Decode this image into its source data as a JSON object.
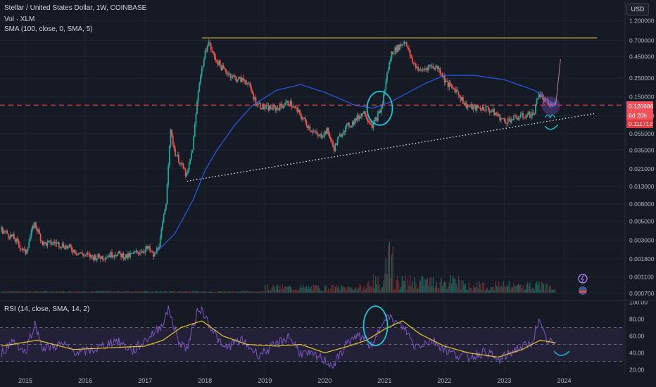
{
  "legend": {
    "main": "Stellar / United States Dollar, 1W, COINBASE",
    "vol": "Vol · XLM",
    "sma": "SMA (100, close, 0, SMA, 5)",
    "rsi": "RSI (14, close, SMA, 14, 2)"
  },
  "header": {
    "currency_button": "USD"
  },
  "price_tags": {
    "last": "0.120686",
    "countdown": "6d 20h",
    "sma": "0.111712"
  },
  "colors": {
    "bg": "#161a25",
    "grid": "#20242f",
    "up": "#26a69a",
    "down": "#ef5350",
    "sma": "#2962ff",
    "resistance": "#c9a227",
    "support": "#e6e6e6",
    "rsi": "#7e57c2",
    "rsi_ma": "#e6c62b",
    "annotation": "#21c4d6",
    "tag_last": "#f0525c",
    "tag_sma": "#e8363d"
  },
  "chart_data": [
    {
      "type": "candlestick",
      "title": "Stellar / United States Dollar, 1W, COINBASE",
      "x_ticks": [
        "2015",
        "2016",
        "2017",
        "2018",
        "2019",
        "2020",
        "2021",
        "2022",
        "2023",
        "2024"
      ],
      "y_scale": "log",
      "y_ticks": [
        "1.200000",
        "0.700000",
        "0.450000",
        "0.250000",
        "0.150000",
        "0.090000",
        "0.055000",
        "0.035000",
        "0.021000",
        "0.013000",
        "0.008000",
        "0.005000",
        "0.003000",
        "0.001800",
        "0.001100",
        "0.000700"
      ],
      "price_path": [
        [
          2014.6,
          0.004
        ],
        [
          2014.8,
          0.0032
        ],
        [
          2015.0,
          0.0021
        ],
        [
          2015.15,
          0.0048
        ],
        [
          2015.3,
          0.0027
        ],
        [
          2015.5,
          0.0028
        ],
        [
          2015.7,
          0.0025
        ],
        [
          2015.9,
          0.0021
        ],
        [
          2016.1,
          0.0019
        ],
        [
          2016.3,
          0.0019
        ],
        [
          2016.5,
          0.0021
        ],
        [
          2016.7,
          0.0019
        ],
        [
          2016.9,
          0.0022
        ],
        [
          2017.05,
          0.0024
        ],
        [
          2017.15,
          0.0019
        ],
        [
          2017.25,
          0.0029
        ],
        [
          2017.35,
          0.0085
        ],
        [
          2017.42,
          0.06
        ],
        [
          2017.5,
          0.033
        ],
        [
          2017.6,
          0.024
        ],
        [
          2017.7,
          0.017
        ],
        [
          2017.8,
          0.04
        ],
        [
          2017.9,
          0.22
        ],
        [
          2018.05,
          0.7
        ],
        [
          2018.15,
          0.45
        ],
        [
          2018.3,
          0.32
        ],
        [
          2018.5,
          0.25
        ],
        [
          2018.7,
          0.23
        ],
        [
          2018.85,
          0.13
        ],
        [
          2019.0,
          0.11
        ],
        [
          2019.2,
          0.11
        ],
        [
          2019.4,
          0.13
        ],
        [
          2019.55,
          0.1
        ],
        [
          2019.75,
          0.064
        ],
        [
          2019.9,
          0.05
        ],
        [
          2020.05,
          0.06
        ],
        [
          2020.15,
          0.036
        ],
        [
          2020.3,
          0.06
        ],
        [
          2020.5,
          0.078
        ],
        [
          2020.65,
          0.1
        ],
        [
          2020.8,
          0.068
        ],
        [
          2020.95,
          0.11
        ],
        [
          2021.05,
          0.3
        ],
        [
          2021.12,
          0.5
        ],
        [
          2021.25,
          0.6
        ],
        [
          2021.35,
          0.7
        ],
        [
          2021.45,
          0.4
        ],
        [
          2021.6,
          0.3
        ],
        [
          2021.75,
          0.35
        ],
        [
          2021.9,
          0.33
        ],
        [
          2022.05,
          0.21
        ],
        [
          2022.2,
          0.18
        ],
        [
          2022.35,
          0.12
        ],
        [
          2022.5,
          0.11
        ],
        [
          2022.7,
          0.11
        ],
        [
          2022.85,
          0.095
        ],
        [
          2023.0,
          0.077
        ],
        [
          2023.2,
          0.085
        ],
        [
          2023.35,
          0.09
        ],
        [
          2023.5,
          0.095
        ],
        [
          2023.57,
          0.17
        ],
        [
          2023.65,
          0.14
        ],
        [
          2023.75,
          0.12
        ],
        [
          2023.85,
          0.121
        ]
      ],
      "sma_100_path": [
        [
          2017.2,
          0.0022
        ],
        [
          2017.5,
          0.0036
        ],
        [
          2017.8,
          0.009
        ],
        [
          2018.0,
          0.02
        ],
        [
          2018.2,
          0.035
        ],
        [
          2018.5,
          0.07
        ],
        [
          2018.8,
          0.12
        ],
        [
          2019.2,
          0.18
        ],
        [
          2019.6,
          0.21
        ],
        [
          2020.0,
          0.17
        ],
        [
          2020.5,
          0.12
        ],
        [
          2020.8,
          0.11
        ],
        [
          2021.1,
          0.13
        ],
        [
          2021.4,
          0.17
        ],
        [
          2021.7,
          0.22
        ],
        [
          2022.0,
          0.27
        ],
        [
          2022.5,
          0.27
        ],
        [
          2023.0,
          0.24
        ],
        [
          2023.5,
          0.18
        ],
        [
          2023.85,
          0.12
        ]
      ],
      "resistance_level": 0.75,
      "horizontal_level": 0.12,
      "support_trendline": [
        [
          2017.7,
          0.015
        ],
        [
          2024.5,
          0.095
        ]
      ]
    },
    {
      "type": "line",
      "title": "RSI (14, close, SMA, 14, 2)",
      "y_ticks": [
        "100.00",
        "80.00",
        "60.00",
        "40.00",
        "20.00"
      ],
      "bands": {
        "upper": 70,
        "middle": 50,
        "lower": 30
      },
      "rsi_path": [
        [
          2014.6,
          40
        ],
        [
          2014.8,
          55
        ],
        [
          2015.0,
          40
        ],
        [
          2015.15,
          75
        ],
        [
          2015.3,
          45
        ],
        [
          2015.6,
          50
        ],
        [
          2015.9,
          40
        ],
        [
          2016.2,
          45
        ],
        [
          2016.5,
          55
        ],
        [
          2016.8,
          42
        ],
        [
          2017.0,
          55
        ],
        [
          2017.25,
          70
        ],
        [
          2017.4,
          92
        ],
        [
          2017.55,
          55
        ],
        [
          2017.7,
          45
        ],
        [
          2017.9,
          95
        ],
        [
          2018.05,
          78
        ],
        [
          2018.3,
          45
        ],
        [
          2018.6,
          55
        ],
        [
          2018.9,
          38
        ],
        [
          2019.2,
          50
        ],
        [
          2019.4,
          60
        ],
        [
          2019.6,
          40
        ],
        [
          2019.9,
          35
        ],
        [
          2020.15,
          25
        ],
        [
          2020.4,
          55
        ],
        [
          2020.65,
          60
        ],
        [
          2020.8,
          45
        ],
        [
          2021.0,
          85
        ],
        [
          2021.2,
          75
        ],
        [
          2021.35,
          68
        ],
        [
          2021.5,
          48
        ],
        [
          2021.8,
          55
        ],
        [
          2022.1,
          40
        ],
        [
          2022.4,
          35
        ],
        [
          2022.7,
          42
        ],
        [
          2022.9,
          30
        ],
        [
          2023.2,
          45
        ],
        [
          2023.45,
          50
        ],
        [
          2023.57,
          78
        ],
        [
          2023.7,
          55
        ],
        [
          2023.85,
          50
        ]
      ],
      "rsi_ma_path": [
        [
          2014.6,
          48
        ],
        [
          2015.2,
          55
        ],
        [
          2015.8,
          44
        ],
        [
          2016.4,
          46
        ],
        [
          2017.0,
          48
        ],
        [
          2017.3,
          55
        ],
        [
          2017.6,
          70
        ],
        [
          2017.95,
          78
        ],
        [
          2018.3,
          60
        ],
        [
          2018.7,
          50
        ],
        [
          2019.2,
          48
        ],
        [
          2019.6,
          50
        ],
        [
          2020.0,
          40
        ],
        [
          2020.4,
          48
        ],
        [
          2020.7,
          55
        ],
        [
          2021.0,
          68
        ],
        [
          2021.3,
          78
        ],
        [
          2021.6,
          62
        ],
        [
          2022.0,
          48
        ],
        [
          2022.4,
          40
        ],
        [
          2022.9,
          35
        ],
        [
          2023.3,
          44
        ],
        [
          2023.6,
          55
        ],
        [
          2023.85,
          52
        ]
      ]
    }
  ]
}
